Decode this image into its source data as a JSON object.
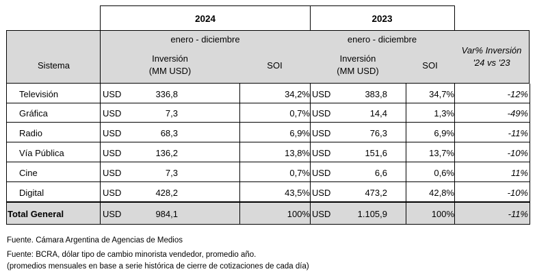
{
  "header": {
    "year_2024": "2024",
    "year_2023": "2023",
    "period_2024": "enero - diciembre",
    "period_2023": "enero - diciembre",
    "col_sistema": "Sistema",
    "col_inversion_2024_line1": "Inversión",
    "col_inversion_2024_line2": "(MM USD)",
    "col_soi_2024": "SOI",
    "col_inversion_2023_line1": "Inversión",
    "col_inversion_2023_line2": "(MM USD)",
    "col_soi_2023": "SOI",
    "col_var_line1": "Var% Inversión",
    "col_var_line2": "'24 vs '23"
  },
  "rows": [
    {
      "sistema": "Televisión",
      "cur_2024": "USD",
      "inv_2024": "336,8",
      "soi_2024": "34,2%",
      "cur_2023": "USD",
      "inv_2023": "383,8",
      "soi_2023": "34,7%",
      "var": "-12%"
    },
    {
      "sistema": "Gráfica",
      "cur_2024": "USD",
      "inv_2024": "7,3",
      "soi_2024": "0,7%",
      "cur_2023": "USD",
      "inv_2023": "14,4",
      "soi_2023": "1,3%",
      "var": "-49%"
    },
    {
      "sistema": "Radio",
      "cur_2024": "USD",
      "inv_2024": "68,3",
      "soi_2024": "6,9%",
      "cur_2023": "USD",
      "inv_2023": "76,3",
      "soi_2023": "6,9%",
      "var": "-11%"
    },
    {
      "sistema": "Vía Pública",
      "cur_2024": "USD",
      "inv_2024": "136,2",
      "soi_2024": "13,8%",
      "cur_2023": "USD",
      "inv_2023": "151,6",
      "soi_2023": "13,7%",
      "var": "-10%"
    },
    {
      "sistema": "Cine",
      "cur_2024": "USD",
      "inv_2024": "7,3",
      "soi_2024": "0,7%",
      "cur_2023": "USD",
      "inv_2023": "6,6",
      "soi_2023": "0,6%",
      "var": "11%"
    },
    {
      "sistema": "Digital",
      "cur_2024": "USD",
      "inv_2024": "428,2",
      "soi_2024": "43,5%",
      "cur_2023": "USD",
      "inv_2023": "473,2",
      "soi_2023": "42,8%",
      "var": "-10%"
    }
  ],
  "total": {
    "sistema": "Total General",
    "cur_2024": "USD",
    "inv_2024": "984,1",
    "soi_2024": "100%",
    "cur_2023": "USD",
    "inv_2023": "1.105,9",
    "soi_2023": "100%",
    "var": "-11%"
  },
  "notes": {
    "line1": "Fuente. Cámara Argentina de Agencias de Medios",
    "line2": "Fuente: BCRA, dólar tipo de cambio minorista vendedor, promedio año.",
    "line3": "(promedios mensuales en base a serie histórica de cierre de cotizaciones de cada día)"
  }
}
